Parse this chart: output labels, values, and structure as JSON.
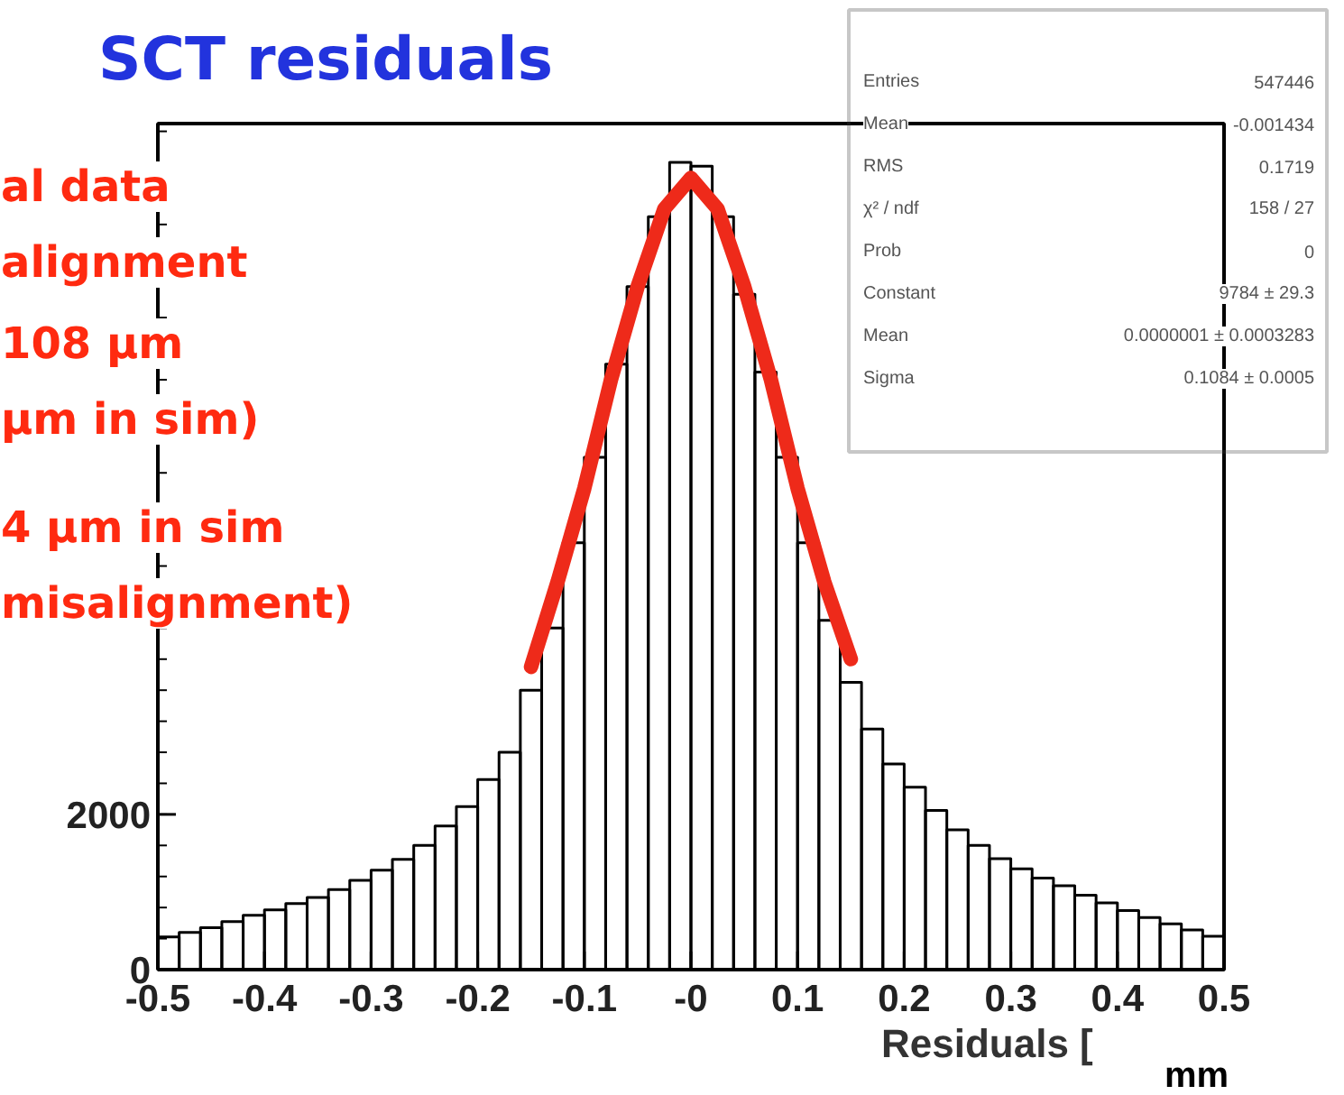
{
  "chart_data": {
    "type": "histogram",
    "title": "SCT residuals",
    "xlabel": "Residuals [",
    "series": [
      {
        "color": "#000000",
        "bins": [
          -0.5,
          -0.48,
          -0.46,
          -0.44,
          -0.42,
          -0.4,
          -0.38,
          -0.36,
          -0.34,
          -0.32,
          -0.3,
          -0.28,
          -0.26,
          -0.24,
          -0.22,
          -0.2,
          -0.18,
          -0.16,
          -0.14,
          -0.12,
          -0.1,
          -0.08,
          -0.06,
          -0.04,
          -0.02,
          0,
          0.02,
          0.04,
          0.06,
          0.08,
          0.1,
          0.12,
          0.14,
          0.16,
          0.18,
          0.2,
          0.22,
          0.24,
          0.26,
          0.28,
          0.3,
          0.32,
          0.34,
          0.36,
          0.38,
          0.4,
          0.42,
          0.44,
          0.46,
          0.48,
          0.5
        ],
        "values": [
          420,
          480,
          540,
          620,
          700,
          770,
          850,
          930,
          1030,
          1150,
          1280,
          1420,
          1600,
          1850,
          2100,
          2450,
          2800,
          3600,
          4400,
          5500,
          6600,
          7800,
          8800,
          9700,
          10400,
          10350,
          9700,
          8700,
          7700,
          6600,
          5500,
          4500,
          3700,
          3100,
          2650,
          2350,
          2050,
          1800,
          1600,
          1430,
          1300,
          1180,
          1080,
          960,
          860,
          760,
          670,
          590,
          510,
          430
        ]
      },
      {
        "type": "line",
        "color": "#ee2a1a",
        "x": [
          -0.15,
          -0.125,
          -0.1,
          -0.075,
          -0.05,
          -0.025,
          0,
          0.025,
          0.05,
          0.075,
          0.1,
          0.125,
          0.15
        ],
        "values": [
          3900,
          5000,
          6200,
          7600,
          8800,
          9800,
          10200,
          9800,
          8800,
          7600,
          6200,
          5000,
          4000
        ]
      }
    ],
    "xlim": [
      -0.5,
      0.5
    ],
    "ylim": [
      0,
      10900
    ],
    "xticks": [
      -0.5,
      -0.4,
      -0.3,
      -0.2,
      -0.1,
      {
        "value": 0,
        "label": "-0"
      },
      0.1,
      0.2,
      0.3,
      0.4,
      0.5
    ],
    "yticks": [
      0,
      2000
    ],
    "annotations": [
      "al data",
      "alignment",
      "108 μm",
      "μm in sim)",
      "4 μm in sim",
      "misalignment)",
      "Entries",
      "547446",
      "Mean",
      "-0.001434",
      "RMS",
      "0.1719",
      "χ² / ndf",
      "158 / 27",
      "Prob",
      "0",
      "Constant",
      "9784 ± 29.3",
      "Mean",
      "0.0000001 ± 0.0003283",
      "Sigma",
      "0.1084 ± 0.0005",
      "mm"
    ]
  }
}
